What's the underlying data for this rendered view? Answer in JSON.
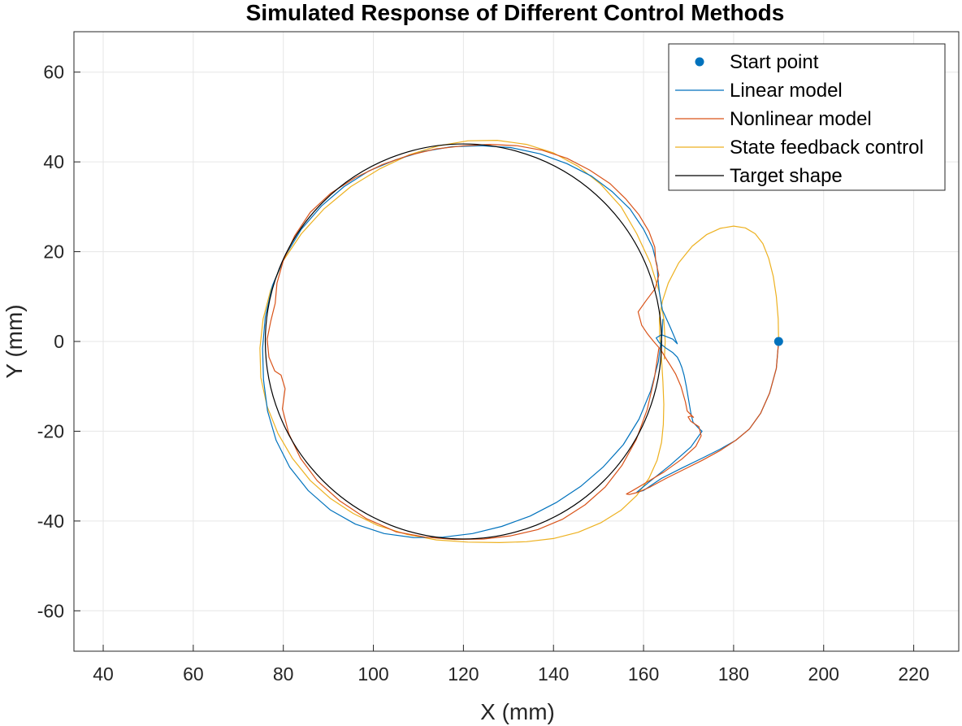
{
  "chart_data": {
    "type": "line",
    "title": "Simulated Response of Different Control Methods",
    "xlabel": "X (mm)",
    "ylabel": "Y (mm)",
    "xlim": [
      33.5,
      230
    ],
    "ylim": [
      -69,
      69
    ],
    "xticks": [
      40,
      60,
      80,
      100,
      120,
      140,
      160,
      180,
      200,
      220
    ],
    "yticks": [
      -60,
      -40,
      -20,
      0,
      20,
      40,
      60
    ],
    "grid": true,
    "legend_position": "top-right",
    "colors": {
      "start_point": "#0072BD",
      "linear": "#0072BD",
      "nonlinear": "#D95319",
      "state_feedback": "#EDB120",
      "target": "#000000"
    },
    "legend": [
      "Start point",
      "Linear model",
      "Nonlinear model",
      "State feedback control",
      "Target shape"
    ],
    "series": [
      {
        "name": "Start point",
        "kind": "marker",
        "points": [
          [
            190,
            0
          ]
        ]
      },
      {
        "name": "Target shape",
        "kind": "circle",
        "center": [
          120,
          0
        ],
        "radius": 44
      },
      {
        "name": "State feedback control",
        "kind": "line",
        "x": [
          190,
          189.9,
          189.5,
          188.8,
          187.8,
          186.5,
          184.8,
          182.6,
          180,
          177,
          174,
          170.8,
          167.8,
          165.5,
          164.2,
          163.5,
          163.6,
          164,
          164.3,
          164.5,
          164.4,
          164,
          163,
          161.2,
          158.5,
          155,
          150.5,
          145.5,
          140,
          134,
          128,
          121,
          114,
          107.5,
          101,
          95.5,
          90.5,
          86,
          82,
          78.8,
          76.4,
          75,
          74.8,
          75.5,
          77.2,
          80,
          84,
          89,
          95,
          101.5,
          108,
          114.5,
          121,
          127.5,
          134,
          140,
          145.5,
          150.5,
          155,
          158.5,
          161.5,
          163.5,
          164.5,
          164.8,
          164.6
        ],
        "y": [
          0,
          5,
          10,
          14.5,
          18.5,
          21.8,
          24,
          25.3,
          25.7,
          25.2,
          23.8,
          21.2,
          17.5,
          13,
          9,
          5,
          1,
          -4,
          -9,
          -14,
          -18.5,
          -22.5,
          -26.5,
          -30.5,
          -34.3,
          -37.6,
          -40.4,
          -42.5,
          -43.9,
          -44.6,
          -44.8,
          -44.7,
          -44.2,
          -43,
          -41,
          -38.3,
          -35,
          -31,
          -26,
          -20.5,
          -14.5,
          -8,
          -1.5,
          5,
          11.5,
          18,
          24,
          29.5,
          34.5,
          38.5,
          41.6,
          43.6,
          44.7,
          44.8,
          43.9,
          42,
          39,
          35,
          30,
          24,
          17.5,
          11,
          5,
          0,
          -4
        ]
      },
      {
        "name": "Linear model",
        "kind": "line",
        "x": [
          190,
          189.5,
          188,
          186,
          183.5,
          180.5,
          177,
          173,
          168.5,
          164,
          160,
          158.5,
          161,
          166,
          170.5,
          173,
          172.2,
          171,
          170.5,
          170,
          169.5,
          169,
          168.5,
          168,
          167.5,
          166.5,
          165,
          163.5,
          162.8,
          164,
          166.5,
          167.5,
          166,
          164.2,
          163.5,
          163.2,
          163,
          162,
          160,
          157,
          153,
          148.5,
          143,
          137,
          130.5,
          124,
          117.5,
          111,
          105,
          99,
          93.5,
          88.5,
          84,
          80.4,
          77.6,
          76,
          75.4,
          75.6,
          76.5,
          78.4,
          81.4,
          85.5,
          90.4,
          96,
          102.4,
          109,
          115.5,
          122,
          128.5,
          134.8,
          140.6,
          146,
          151,
          155.5,
          159,
          161.6,
          163.3,
          164.1,
          164.3
        ],
        "y": [
          0,
          -6,
          -11.5,
          -16,
          -19.5,
          -22,
          -24,
          -26,
          -28.2,
          -30.5,
          -33.2,
          -33.6,
          -31.5,
          -27.5,
          -23.5,
          -20,
          -19.3,
          -18,
          -16,
          -13,
          -10,
          -7.5,
          -5.8,
          -4.5,
          -3.5,
          -2.5,
          -1.5,
          -0.3,
          0.8,
          1.5,
          0.5,
          -0.5,
          3,
          7,
          11,
          14,
          17,
          21,
          25,
          29.5,
          33.4,
          36.8,
          39.6,
          41.8,
          43.2,
          43.6,
          43.4,
          42.3,
          40.5,
          38,
          34.5,
          30.2,
          25,
          19,
          12.5,
          5.5,
          -1.5,
          -8.5,
          -15.5,
          -22,
          -28,
          -33.2,
          -37.5,
          -40.7,
          -42.8,
          -43.7,
          -43.6,
          -42.8,
          -41.2,
          -38.9,
          -35.9,
          -32.3,
          -28,
          -23,
          -17.3,
          -11,
          -4.5,
          1.5,
          5
        ]
      },
      {
        "name": "Nonlinear model",
        "kind": "line",
        "x": [
          190,
          189.5,
          188,
          186,
          183.5,
          180.5,
          177,
          173,
          169,
          165,
          161.5,
          158.8,
          156.8,
          156.2,
          157.6,
          160.5,
          164.5,
          168.5,
          171.6,
          172.8,
          172.3,
          170.5,
          169.9,
          170.5,
          171.1,
          170.8,
          169.7,
          169.3,
          168.3,
          167.1,
          166,
          165.1,
          163.8,
          162.4,
          161.6,
          160.8,
          159.6,
          158.8,
          160.5,
          162.6,
          163.4,
          162.7,
          162.5,
          161.2,
          159,
          156,
          152.5,
          148,
          143,
          137.5,
          132,
          126,
          120,
          114,
          108,
          102,
          96,
          90.5,
          86,
          82.5,
          80,
          78.6,
          78.2,
          77.2,
          76.4,
          76.8,
          78.1,
          79.5,
          80.4,
          79.8,
          81.2,
          83.8,
          87.5,
          92.5,
          98.5,
          105,
          111.5,
          118,
          124.5,
          130.5,
          136.5,
          142,
          147,
          151.5,
          155.2,
          158.4,
          160.8,
          162.4,
          163.4
        ],
        "y": [
          0,
          -6,
          -11.5,
          -16,
          -19.5,
          -22,
          -24.3,
          -26.5,
          -28.5,
          -30.5,
          -32.4,
          -33.6,
          -34.1,
          -34,
          -33.2,
          -31.5,
          -29.1,
          -26.2,
          -23.4,
          -21,
          -19,
          -17.8,
          -16.8,
          -16.6,
          -16.9,
          -16.6,
          -15.5,
          -13.5,
          -10,
          -7.2,
          -5.4,
          -4,
          -1.8,
          -0.2,
          0.8,
          1.8,
          3.6,
          6.6,
          9,
          11.8,
          14.8,
          18,
          21,
          24.5,
          28.2,
          31.8,
          35.2,
          38.2,
          40.8,
          42.6,
          43.6,
          43.9,
          43.6,
          42.9,
          41.5,
          39.4,
          36.5,
          33,
          28.8,
          23.5,
          18,
          13,
          8.5,
          4.5,
          0.5,
          -3.5,
          -6.6,
          -7.5,
          -10.5,
          -15,
          -20.5,
          -26,
          -31,
          -35.5,
          -39.5,
          -42.4,
          -43.6,
          -44.1,
          -44,
          -43.3,
          -41.9,
          -39.6,
          -36.4,
          -32.4,
          -27.6,
          -21.8,
          -15.2,
          -8.2,
          -1.5
        ]
      }
    ]
  }
}
